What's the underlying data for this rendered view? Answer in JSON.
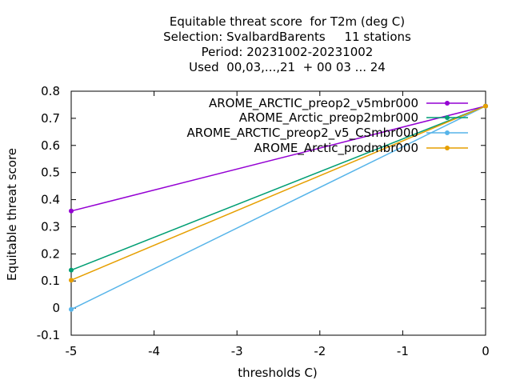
{
  "chart_data": {
    "type": "line",
    "title_lines": [
      "Equitable threat score  for T2m (deg C)",
      "Selection: SvalbardBarents     11 stations",
      "Period: 20231002-20231002",
      "Used  00,03,...,21  + 00 03 ... 24"
    ],
    "xlabel": "thresholds C)",
    "ylabel": "Equitable threat score",
    "xlim": [
      -5,
      0
    ],
    "ylim": [
      -0.1,
      0.8
    ],
    "xticks": [
      {
        "v": -5,
        "label": "-5"
      },
      {
        "v": -4,
        "label": "-4"
      },
      {
        "v": -3,
        "label": "-3"
      },
      {
        "v": -2,
        "label": "-2"
      },
      {
        "v": -1,
        "label": "-1"
      },
      {
        "v": 0,
        "label": "0"
      }
    ],
    "yticks": [
      {
        "v": -0.1,
        "label": "-0.1"
      },
      {
        "v": 0,
        "label": "0"
      },
      {
        "v": 0.1,
        "label": "0.1"
      },
      {
        "v": 0.2,
        "label": "0.2"
      },
      {
        "v": 0.3,
        "label": "0.3"
      },
      {
        "v": 0.4,
        "label": "0.4"
      },
      {
        "v": 0.5,
        "label": "0.5"
      },
      {
        "v": 0.6,
        "label": "0.6"
      },
      {
        "v": 0.7,
        "label": "0.7"
      },
      {
        "v": 0.8,
        "label": "0.8"
      }
    ],
    "grid": false,
    "legend_position": "top-right",
    "x": [
      -5,
      0
    ],
    "series": [
      {
        "name": "AROME_ARCTIC_preop2_v5mbr000",
        "color": "#9400d3",
        "values": [
          0.358,
          0.745
        ]
      },
      {
        "name": "AROME_Arctic_preop2mbr000",
        "color": "#009e73",
        "values": [
          0.14,
          0.745
        ]
      },
      {
        "name": "AROME_ARCTIC_preop2_v5_CSmbr000",
        "color": "#56b4e9",
        "values": [
          -0.005,
          0.745
        ]
      },
      {
        "name": "AROME_Arctic_prodmbr000",
        "color": "#e69f00",
        "values": [
          0.103,
          0.745
        ]
      }
    ]
  }
}
